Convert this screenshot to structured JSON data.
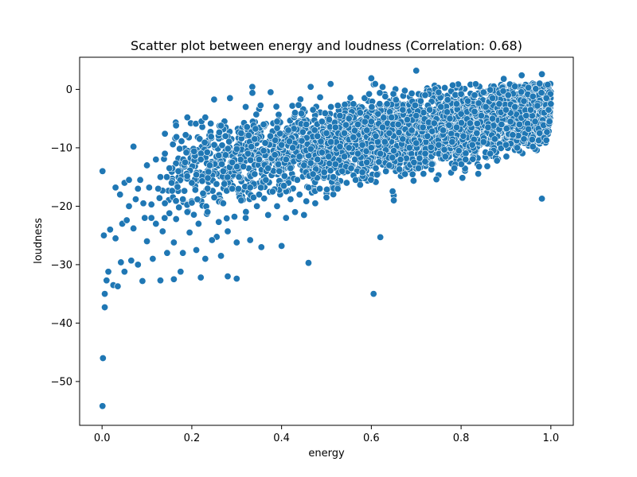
{
  "chart_data": {
    "type": "scatter",
    "title": "Scatter plot between energy and loudness (Correlation: 0.68)",
    "xlabel": "energy",
    "ylabel": "loudness",
    "xlim": [
      -0.05,
      1.05
    ],
    "ylim": [
      -57.5,
      5.5
    ],
    "x_ticks": [
      0.0,
      0.2,
      0.4,
      0.6,
      0.8,
      1.0
    ],
    "x_tick_labels": [
      "0.0",
      "0.2",
      "0.4",
      "0.6",
      "0.8",
      "1.0"
    ],
    "y_ticks": [
      0,
      -10,
      -20,
      -30,
      -40,
      -50
    ],
    "y_tick_labels": [
      "0",
      "−10",
      "−20",
      "−30",
      "−40",
      "−50"
    ],
    "grid": false,
    "legend": "none",
    "marker_color": "#1f77b4",
    "marker_edge_color": "#ffffff",
    "points": [
      [
        0.001,
        -14.0
      ],
      [
        0.001,
        -54.2
      ],
      [
        0.002,
        -46.0
      ],
      [
        0.004,
        -25.0
      ],
      [
        0.006,
        -37.3
      ],
      [
        0.006,
        -35.0
      ],
      [
        0.01,
        -32.7
      ],
      [
        0.014,
        -31.2
      ],
      [
        0.018,
        -24.0
      ],
      [
        0.025,
        -33.5
      ],
      [
        0.03,
        -16.8
      ],
      [
        0.03,
        -25.5
      ],
      [
        0.035,
        -33.7
      ],
      [
        0.04,
        -18.0
      ],
      [
        0.042,
        -29.6
      ],
      [
        0.045,
        -23.0
      ],
      [
        0.05,
        -16.0
      ],
      [
        0.05,
        -31.2
      ],
      [
        0.055,
        -22.4
      ],
      [
        0.06,
        -15.5
      ],
      [
        0.06,
        -20.0
      ],
      [
        0.065,
        -29.3
      ],
      [
        0.07,
        -23.8
      ],
      [
        0.07,
        -9.8
      ],
      [
        0.075,
        -18.8
      ],
      [
        0.08,
        -17.0
      ],
      [
        0.08,
        -30.0
      ],
      [
        0.085,
        -15.5
      ],
      [
        0.09,
        -32.8
      ],
      [
        0.092,
        -19.5
      ],
      [
        0.095,
        -22.0
      ],
      [
        0.1,
        -13.0
      ],
      [
        0.1,
        -26.0
      ],
      [
        0.105,
        -16.8
      ],
      [
        0.11,
        -19.7
      ],
      [
        0.11,
        -22.0
      ],
      [
        0.113,
        -29.0
      ],
      [
        0.12,
        -23.0
      ],
      [
        0.12,
        -12.0
      ],
      [
        0.125,
        -17.0
      ],
      [
        0.13,
        -15.0
      ],
      [
        0.13,
        -32.7
      ],
      [
        0.135,
        -24.3
      ],
      [
        0.14,
        -19.5
      ],
      [
        0.14,
        -11.0
      ],
      [
        0.145,
        -28.0
      ],
      [
        0.15,
        -13.5
      ],
      [
        0.15,
        -21.2
      ],
      [
        0.155,
        -16.0
      ],
      [
        0.16,
        -26.2
      ],
      [
        0.16,
        -32.5
      ],
      [
        0.165,
        -22.2
      ],
      [
        0.17,
        -14.0
      ],
      [
        0.175,
        -31.2
      ],
      [
        0.18,
        -18.8
      ],
      [
        0.18,
        -28.0
      ],
      [
        0.185,
        -12.5
      ],
      [
        0.19,
        -21.0
      ],
      [
        0.19,
        -4.8
      ],
      [
        0.195,
        -24.5
      ],
      [
        0.2,
        -16.0
      ],
      [
        0.2,
        -19.4
      ],
      [
        0.205,
        -10.6
      ],
      [
        0.21,
        -27.5
      ],
      [
        0.21,
        -14.6
      ],
      [
        0.215,
        -23.0
      ],
      [
        0.22,
        -12.0
      ],
      [
        0.22,
        -32.2
      ],
      [
        0.225,
        -17.8
      ],
      [
        0.23,
        -29.0
      ],
      [
        0.23,
        -4.8
      ],
      [
        0.235,
        -21.0
      ],
      [
        0.24,
        -13.0
      ],
      [
        0.245,
        -25.8
      ],
      [
        0.25,
        -9.5
      ],
      [
        0.25,
        -18.5
      ],
      [
        0.255,
        -16.2
      ],
      [
        0.26,
        -22.7
      ],
      [
        0.26,
        -11.3
      ],
      [
        0.265,
        -28.5
      ],
      [
        0.27,
        -14.0
      ],
      [
        0.27,
        -19.5
      ],
      [
        0.275,
        -8.0
      ],
      [
        0.28,
        -24.3
      ],
      [
        0.28,
        -32.0
      ],
      [
        0.285,
        -1.5
      ],
      [
        0.29,
        -12.5
      ],
      [
        0.29,
        -17.0
      ],
      [
        0.295,
        -21.8
      ],
      [
        0.3,
        -10.2
      ],
      [
        0.3,
        -26.2
      ],
      [
        0.3,
        -32.4
      ],
      [
        0.305,
        -15.0
      ],
      [
        0.31,
        -7.5
      ],
      [
        0.31,
        -19.0
      ],
      [
        0.315,
        -13.2
      ],
      [
        0.32,
        -22.0
      ],
      [
        0.32,
        -3.0
      ],
      [
        0.325,
        -11.0
      ],
      [
        0.33,
        -16.8
      ],
      [
        0.33,
        -25.8
      ],
      [
        0.335,
        -0.6
      ],
      [
        0.34,
        -8.5
      ],
      [
        0.34,
        -14.5
      ],
      [
        0.345,
        -20.0
      ],
      [
        0.35,
        -12.0
      ],
      [
        0.35,
        -18.0
      ],
      [
        0.355,
        -27.0
      ],
      [
        0.36,
        -6.0
      ],
      [
        0.36,
        -10.5
      ],
      [
        0.365,
        -15.5
      ],
      [
        0.37,
        -21.5
      ],
      [
        0.37,
        -13.5
      ],
      [
        0.375,
        -8.0
      ],
      [
        0.38,
        -17.5
      ],
      [
        0.385,
        -11.2
      ],
      [
        0.39,
        -20.0
      ],
      [
        0.39,
        -5.5
      ],
      [
        0.395,
        -14.0
      ],
      [
        0.4,
        -9.5
      ],
      [
        0.4,
        -26.8
      ],
      [
        0.405,
        -16.5
      ],
      [
        0.41,
        -12.0
      ],
      [
        0.41,
        -22.0
      ],
      [
        0.415,
        -7.0
      ],
      [
        0.42,
        -18.8
      ],
      [
        0.42,
        -13.5
      ],
      [
        0.425,
        -10.0
      ],
      [
        0.43,
        -21.0
      ],
      [
        0.43,
        -4.0
      ],
      [
        0.435,
        -15.5
      ],
      [
        0.44,
        -11.5
      ],
      [
        0.44,
        -18.0
      ],
      [
        0.445,
        -8.8
      ],
      [
        0.45,
        -13.0
      ],
      [
        0.45,
        -21.5
      ],
      [
        0.455,
        -6.0
      ],
      [
        0.46,
        -16.8
      ],
      [
        0.46,
        -29.7
      ],
      [
        0.465,
        -10.2
      ],
      [
        0.47,
        -14.5
      ],
      [
        0.47,
        -3.5
      ],
      [
        0.475,
        -19.5
      ],
      [
        0.48,
        -8.0
      ],
      [
        0.48,
        -12.0
      ],
      [
        0.485,
        -17.0
      ],
      [
        0.49,
        -5.5
      ],
      [
        0.49,
        -10.8
      ],
      [
        0.495,
        -14.2
      ],
      [
        0.5,
        -7.5
      ],
      [
        0.5,
        -18.5
      ],
      [
        0.505,
        -11.5
      ],
      [
        0.51,
        -3.0
      ],
      [
        0.51,
        -9.0
      ],
      [
        0.515,
        -15.0
      ],
      [
        0.52,
        -6.5
      ],
      [
        0.52,
        -12.8
      ],
      [
        0.525,
        -17.0
      ],
      [
        0.53,
        -4.5
      ],
      [
        0.53,
        -9.8
      ],
      [
        0.535,
        -14.0
      ],
      [
        0.54,
        -7.5
      ],
      [
        0.54,
        -11.5
      ],
      [
        0.545,
        -16.0
      ],
      [
        0.55,
        -5.0
      ],
      [
        0.55,
        -10.0
      ],
      [
        0.555,
        -13.5
      ],
      [
        0.56,
        -2.5
      ],
      [
        0.56,
        -8.2
      ],
      [
        0.565,
        -15.5
      ],
      [
        0.57,
        -6.0
      ],
      [
        0.57,
        -11.0
      ],
      [
        0.575,
        -4.0
      ],
      [
        0.58,
        -9.5
      ],
      [
        0.58,
        -14.2
      ],
      [
        0.585,
        -1.5
      ],
      [
        0.59,
        -7.0
      ],
      [
        0.59,
        -12.5
      ],
      [
        0.595,
        -0.8
      ],
      [
        0.6,
        1.9
      ],
      [
        0.6,
        -5.5
      ],
      [
        0.6,
        -10.0
      ],
      [
        0.605,
        -35.0
      ],
      [
        0.61,
        -8.0
      ],
      [
        0.61,
        -13.5
      ],
      [
        0.615,
        -4.2
      ],
      [
        0.62,
        -25.3
      ],
      [
        0.62,
        -11.0
      ],
      [
        0.625,
        -6.5
      ],
      [
        0.63,
        -9.0
      ],
      [
        0.635,
        -2.5
      ],
      [
        0.64,
        -13.0
      ],
      [
        0.64,
        -7.5
      ],
      [
        0.645,
        -4.8
      ],
      [
        0.65,
        -19.0
      ],
      [
        0.65,
        -10.5
      ],
      [
        0.655,
        -1.8
      ],
      [
        0.66,
        -6.0
      ],
      [
        0.665,
        -12.0
      ],
      [
        0.67,
        -3.5
      ],
      [
        0.67,
        -8.5
      ],
      [
        0.675,
        -14.5
      ],
      [
        0.68,
        -5.2
      ],
      [
        0.685,
        -10.0
      ],
      [
        0.69,
        -0.7
      ],
      [
        0.69,
        -7.0
      ],
      [
        0.695,
        -12.5
      ],
      [
        0.7,
        3.2
      ],
      [
        0.7,
        -4.5
      ],
      [
        0.7,
        -9.2
      ],
      [
        0.705,
        -13.5
      ],
      [
        0.71,
        -2.0
      ],
      [
        0.715,
        -6.5
      ],
      [
        0.72,
        -11.0
      ],
      [
        0.72,
        -1.0
      ],
      [
        0.725,
        -8.0
      ],
      [
        0.73,
        -3.5
      ],
      [
        0.735,
        -12.8
      ],
      [
        0.74,
        -5.8
      ],
      [
        0.745,
        -15.4
      ],
      [
        0.75,
        -0.5
      ],
      [
        0.75,
        -9.5
      ],
      [
        0.755,
        -3.0
      ],
      [
        0.76,
        -7.0
      ],
      [
        0.765,
        -11.5
      ],
      [
        0.77,
        -1.8
      ],
      [
        0.775,
        -5.0
      ],
      [
        0.78,
        -9.0
      ],
      [
        0.785,
        -13.5
      ],
      [
        0.79,
        -2.5
      ],
      [
        0.79,
        -6.5
      ],
      [
        0.795,
        -10.5
      ],
      [
        0.8,
        -0.8
      ],
      [
        0.8,
        -4.2
      ],
      [
        0.805,
        -8.0
      ],
      [
        0.81,
        -12.0
      ],
      [
        0.815,
        -2.0
      ],
      [
        0.82,
        -5.8
      ],
      [
        0.825,
        -9.5
      ],
      [
        0.83,
        -1.0
      ],
      [
        0.83,
        -3.8
      ],
      [
        0.835,
        -7.5
      ],
      [
        0.84,
        -13.2
      ],
      [
        0.845,
        -4.5
      ],
      [
        0.85,
        -0.5
      ],
      [
        0.85,
        -9.0
      ],
      [
        0.855,
        -3.0
      ],
      [
        0.86,
        -6.5
      ],
      [
        0.865,
        -11.0
      ],
      [
        0.87,
        -1.5
      ],
      [
        0.87,
        -5.0
      ],
      [
        0.875,
        -8.5
      ],
      [
        0.88,
        -12.2
      ],
      [
        0.885,
        -2.5
      ],
      [
        0.89,
        -6.0
      ],
      [
        0.895,
        1.8
      ],
      [
        0.9,
        -3.5
      ],
      [
        0.9,
        -9.5
      ],
      [
        0.905,
        -1.0
      ],
      [
        0.91,
        -5.5
      ],
      [
        0.915,
        -7.8
      ],
      [
        0.92,
        0.5
      ],
      [
        0.92,
        -3.0
      ],
      [
        0.925,
        -10.0
      ],
      [
        0.93,
        -6.0
      ],
      [
        0.935,
        2.4
      ],
      [
        0.94,
        -2.0
      ],
      [
        0.94,
        -8.5
      ],
      [
        0.945,
        -4.5
      ],
      [
        0.95,
        0.3
      ],
      [
        0.95,
        -6.8
      ],
      [
        0.955,
        -3.5
      ],
      [
        0.96,
        -1.2
      ],
      [
        0.96,
        -9.8
      ],
      [
        0.965,
        -5.5
      ],
      [
        0.97,
        -2.8
      ],
      [
        0.975,
        1.0
      ],
      [
        0.975,
        -7.5
      ],
      [
        0.98,
        2.6
      ],
      [
        0.98,
        -18.7
      ],
      [
        0.985,
        -4.0
      ],
      [
        0.985,
        -8.3
      ],
      [
        0.99,
        -1.5
      ],
      [
        0.99,
        -8.7
      ],
      [
        0.993,
        0.8
      ],
      [
        0.995,
        -3.5
      ],
      [
        0.997,
        -5.5
      ],
      [
        1.0,
        -2.5
      ]
    ],
    "note_density_band": "generated"
  }
}
